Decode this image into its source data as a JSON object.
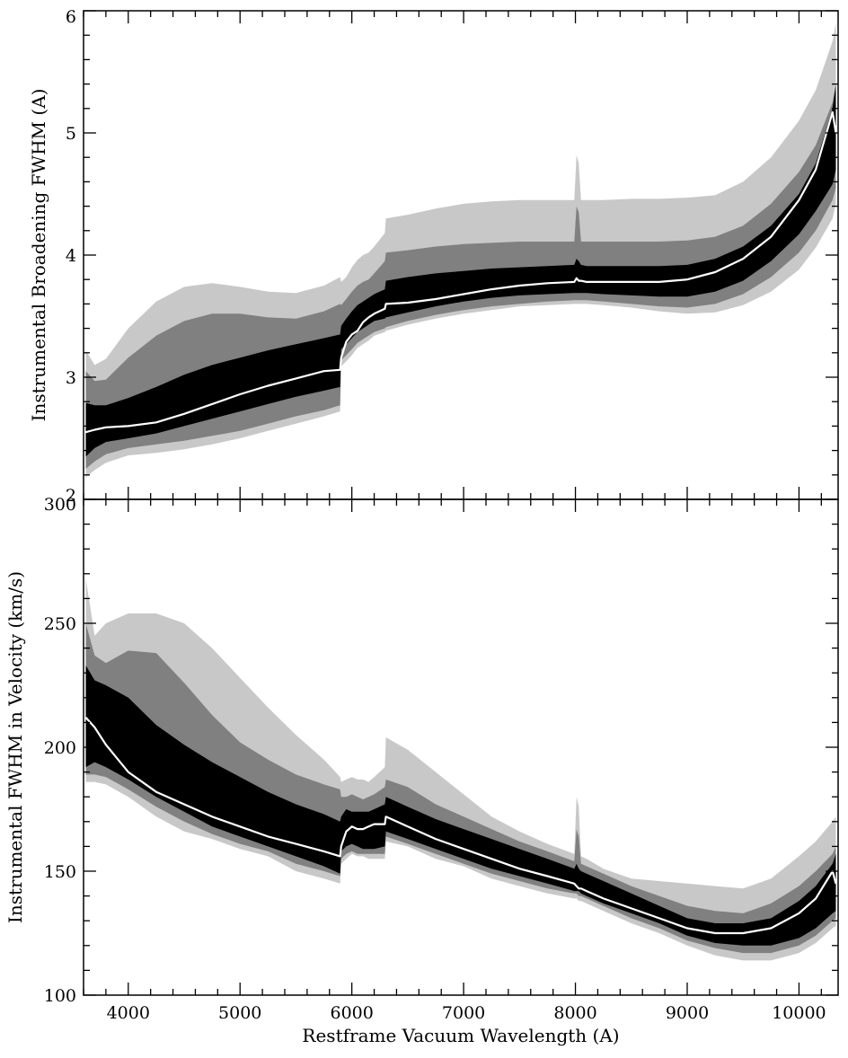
{
  "chart_data": [
    {
      "type": "area",
      "ylabel": "Instrumental Broadening FWHM (A)",
      "xlabel": "",
      "xlim": [
        3600,
        10350
      ],
      "ylim": [
        2,
        6
      ],
      "x_ticks": [
        4000,
        5000,
        6000,
        7000,
        8000,
        9000,
        10000
      ],
      "y_ticks": [
        2,
        3,
        4,
        5,
        6
      ],
      "y_tick_labels": [
        "2",
        "3",
        "4",
        "5",
        "6"
      ],
      "grid": false,
      "colors": {
        "outer_band": "#c8c8c8",
        "middle_band": "#808080",
        "inner_band": "#000000",
        "median_line": "#ffffff"
      },
      "x": [
        3620,
        3700,
        3800,
        4000,
        4250,
        4500,
        4750,
        5000,
        5250,
        5500,
        5750,
        5895,
        5905,
        5950,
        6000,
        6050,
        6100,
        6150,
        6200,
        6295,
        6305,
        6500,
        6750,
        7000,
        7250,
        7500,
        7750,
        7990,
        8010,
        8030,
        8050,
        8100,
        8250,
        8500,
        8750,
        9000,
        9250,
        9500,
        9750,
        10000,
        10150,
        10300,
        10330
      ],
      "series": [
        {
          "band": "outer",
          "lower": [
            2.18,
            2.24,
            2.3,
            2.36,
            2.38,
            2.41,
            2.45,
            2.5,
            2.56,
            2.62,
            2.68,
            2.72,
            3.09,
            3.13,
            3.18,
            3.24,
            3.27,
            3.3,
            3.34,
            3.37,
            3.38,
            3.43,
            3.48,
            3.52,
            3.55,
            3.58,
            3.59,
            3.6,
            3.6,
            3.6,
            3.6,
            3.6,
            3.59,
            3.57,
            3.54,
            3.52,
            3.53,
            3.59,
            3.7,
            3.88,
            4.06,
            4.3,
            4.42
          ],
          "upper": [
            3.22,
            3.1,
            3.15,
            3.4,
            3.62,
            3.74,
            3.77,
            3.74,
            3.7,
            3.69,
            3.75,
            3.82,
            3.78,
            3.82,
            3.9,
            3.96,
            4.0,
            4.02,
            4.07,
            4.18,
            4.3,
            4.33,
            4.38,
            4.42,
            4.44,
            4.45,
            4.45,
            4.45,
            4.82,
            4.75,
            4.45,
            4.45,
            4.45,
            4.46,
            4.46,
            4.47,
            4.49,
            4.6,
            4.8,
            5.1,
            5.35,
            5.75,
            5.9
          ]
        },
        {
          "band": "middle",
          "lower": [
            2.25,
            2.31,
            2.37,
            2.42,
            2.45,
            2.48,
            2.52,
            2.56,
            2.62,
            2.68,
            2.73,
            2.77,
            3.14,
            3.18,
            3.23,
            3.28,
            3.31,
            3.34,
            3.37,
            3.4,
            3.41,
            3.46,
            3.51,
            3.55,
            3.58,
            3.6,
            3.62,
            3.63,
            3.63,
            3.63,
            3.63,
            3.63,
            3.62,
            3.6,
            3.58,
            3.57,
            3.6,
            3.68,
            3.82,
            4.02,
            4.2,
            4.45,
            4.55
          ],
          "upper": [
            3.05,
            2.97,
            2.98,
            3.16,
            3.34,
            3.46,
            3.52,
            3.52,
            3.49,
            3.48,
            3.54,
            3.6,
            3.59,
            3.64,
            3.7,
            3.75,
            3.78,
            3.8,
            3.85,
            3.95,
            4.02,
            4.04,
            4.07,
            4.09,
            4.1,
            4.11,
            4.11,
            4.11,
            4.4,
            4.35,
            4.11,
            4.11,
            4.11,
            4.11,
            4.11,
            4.12,
            4.15,
            4.24,
            4.42,
            4.68,
            4.9,
            5.25,
            5.4
          ]
        },
        {
          "band": "inner",
          "lower": [
            2.35,
            2.42,
            2.47,
            2.5,
            2.54,
            2.6,
            2.66,
            2.72,
            2.78,
            2.84,
            2.89,
            2.92,
            3.23,
            3.27,
            3.32,
            3.37,
            3.4,
            3.43,
            3.46,
            3.48,
            3.49,
            3.53,
            3.58,
            3.62,
            3.65,
            3.67,
            3.68,
            3.69,
            3.69,
            3.69,
            3.69,
            3.69,
            3.68,
            3.67,
            3.66,
            3.66,
            3.7,
            3.79,
            3.95,
            4.17,
            4.36,
            4.58,
            4.7
          ],
          "upper": [
            2.79,
            2.77,
            2.77,
            2.83,
            2.92,
            3.02,
            3.1,
            3.16,
            3.22,
            3.27,
            3.32,
            3.35,
            3.42,
            3.48,
            3.54,
            3.59,
            3.62,
            3.65,
            3.68,
            3.72,
            3.79,
            3.82,
            3.85,
            3.87,
            3.89,
            3.9,
            3.91,
            3.92,
            3.97,
            3.95,
            3.92,
            3.91,
            3.91,
            3.91,
            3.91,
            3.92,
            3.97,
            4.07,
            4.24,
            4.5,
            4.75,
            5.2,
            5.4
          ]
        },
        {
          "band": "median",
          "values": [
            2.55,
            2.57,
            2.59,
            2.6,
            2.63,
            2.7,
            2.78,
            2.86,
            2.93,
            2.99,
            3.05,
            3.06,
            3.16,
            3.29,
            3.35,
            3.38,
            3.45,
            3.49,
            3.52,
            3.56,
            3.6,
            3.61,
            3.64,
            3.68,
            3.72,
            3.75,
            3.77,
            3.78,
            3.81,
            3.79,
            3.79,
            3.78,
            3.78,
            3.78,
            3.78,
            3.8,
            3.86,
            3.97,
            4.15,
            4.45,
            4.7,
            5.17,
            5.0
          ]
        }
      ]
    },
    {
      "type": "area",
      "ylabel": "Instrumental FWHM in Velocity (km/s)",
      "xlabel": "Restframe Vacuum Wavelength (A)",
      "xlim": [
        3600,
        10350
      ],
      "ylim": [
        100,
        300
      ],
      "x_ticks": [
        4000,
        5000,
        6000,
        7000,
        8000,
        9000,
        10000
      ],
      "x_tick_labels": [
        "4000",
        "5000",
        "6000",
        "7000",
        "8000",
        "9000",
        "10000"
      ],
      "y_ticks": [
        100,
        150,
        200,
        250,
        300
      ],
      "y_tick_labels": [
        "100",
        "150",
        "200",
        "250",
        "300"
      ],
      "grid": false,
      "colors": {
        "outer_band": "#c8c8c8",
        "middle_band": "#808080",
        "inner_band": "#000000",
        "median_line": "#ffffff"
      },
      "x": [
        3620,
        3700,
        3800,
        4000,
        4250,
        4500,
        4750,
        5000,
        5250,
        5500,
        5750,
        5895,
        5905,
        5950,
        6000,
        6050,
        6100,
        6150,
        6200,
        6295,
        6305,
        6500,
        6750,
        7000,
        7250,
        7500,
        7750,
        7990,
        8010,
        8030,
        8050,
        8100,
        8250,
        8500,
        8750,
        9000,
        9250,
        9500,
        9750,
        10000,
        10150,
        10300,
        10330
      ],
      "series": [
        {
          "band": "outer",
          "lower": [
            186,
            186,
            185,
            180,
            172,
            166,
            163,
            159,
            156,
            150,
            147,
            145,
            153,
            155,
            157,
            156,
            156,
            155,
            155,
            155,
            162,
            160,
            155,
            152,
            147,
            144,
            141,
            139,
            139,
            138,
            138,
            137,
            134,
            129,
            125,
            120,
            116,
            114,
            114,
            117,
            121,
            127,
            128
          ],
          "upper": [
            268,
            245,
            250,
            254,
            254,
            250,
            240,
            228,
            216,
            205,
            195,
            188,
            186,
            187,
            188,
            187,
            187,
            186,
            188,
            192,
            204,
            199,
            190,
            181,
            172,
            166,
            161,
            157,
            180,
            176,
            156,
            155,
            151,
            147,
            146,
            145,
            144,
            143,
            147,
            156,
            162,
            170,
            172
          ]
        },
        {
          "band": "middle",
          "lower": [
            189,
            189,
            188,
            183,
            176,
            170,
            165,
            161,
            158,
            153,
            150,
            148,
            155,
            157,
            158,
            157,
            157,
            157,
            157,
            157,
            164,
            161,
            157,
            153,
            149,
            146,
            143,
            141,
            141,
            140,
            140,
            139,
            136,
            131,
            127,
            122,
            119,
            117,
            117,
            120,
            124,
            130,
            131
          ],
          "upper": [
            250,
            237,
            234,
            239,
            238,
            226,
            213,
            202,
            195,
            189,
            185,
            183,
            180,
            180,
            181,
            180,
            179,
            180,
            181,
            184,
            187,
            184,
            177,
            172,
            167,
            162,
            158,
            154,
            167,
            164,
            153,
            152,
            149,
            144,
            140,
            136,
            134,
            133,
            137,
            144,
            150,
            157,
            160
          ]
        },
        {
          "band": "inner",
          "lower": [
            192,
            194,
            192,
            187,
            180,
            174,
            168,
            164,
            160,
            156,
            152,
            149,
            158,
            160,
            161,
            160,
            159,
            159,
            159,
            160,
            166,
            163,
            159,
            155,
            151,
            148,
            145,
            142,
            142,
            142,
            141,
            140,
            137,
            133,
            129,
            124,
            121,
            120,
            120,
            123,
            127,
            133,
            134
          ],
          "upper": [
            233,
            227,
            225,
            220,
            209,
            201,
            194,
            188,
            182,
            177,
            173,
            170,
            172,
            175,
            174,
            174,
            174,
            174,
            175,
            177,
            180,
            176,
            171,
            167,
            163,
            159,
            155,
            151,
            153,
            151,
            150,
            149,
            146,
            141,
            136,
            131,
            129,
            129,
            131,
            138,
            144,
            153,
            157
          ]
        },
        {
          "band": "median",
          "values": [
            212,
            208,
            201,
            190,
            182,
            177,
            172,
            168,
            164,
            161,
            158,
            156,
            160,
            166,
            168,
            167,
            167,
            168,
            169,
            169,
            172,
            168,
            163,
            159,
            155,
            151,
            148,
            145,
            144,
            143,
            143,
            142,
            139,
            135,
            131,
            127,
            125,
            125,
            127,
            133,
            139,
            150,
            145
          ]
        }
      ]
    }
  ]
}
